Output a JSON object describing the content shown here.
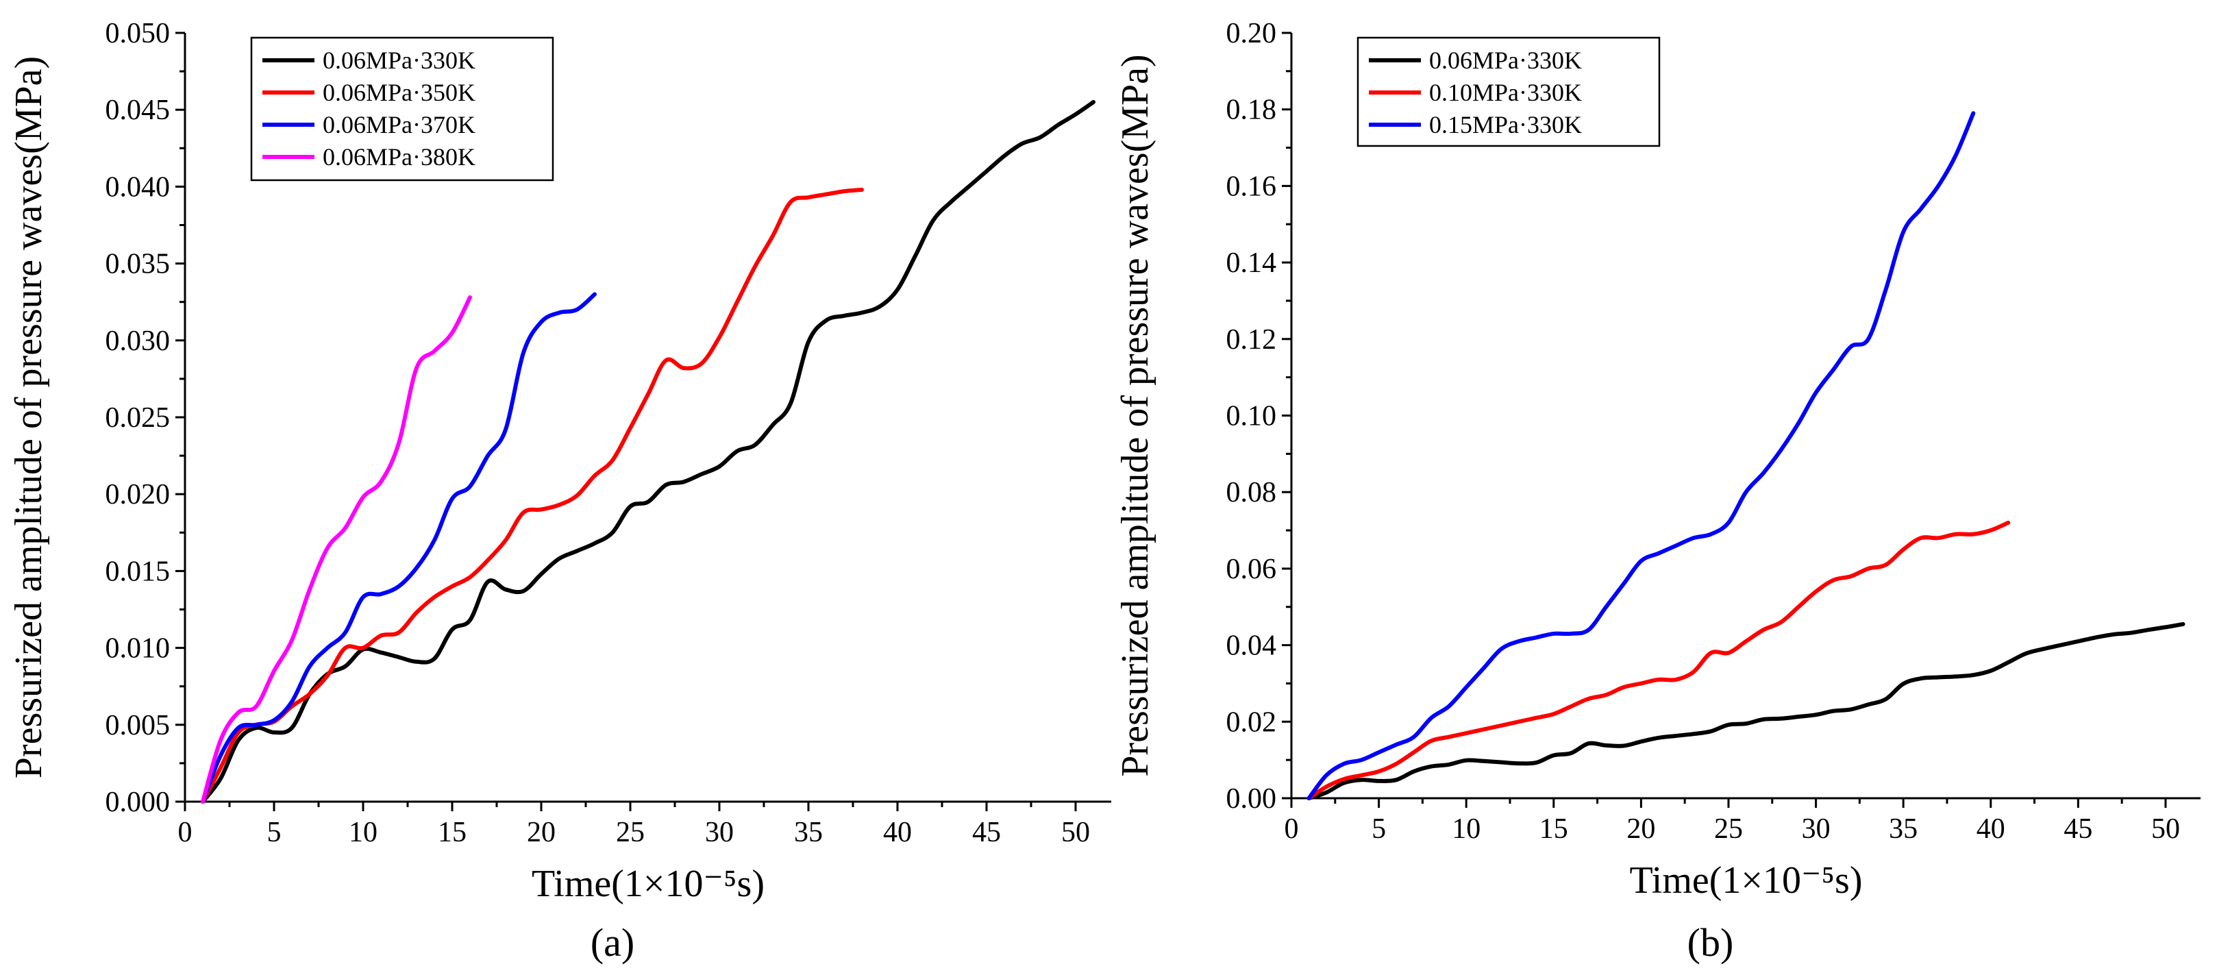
{
  "chart_data": [
    {
      "type": "line",
      "panel_label": "(a)",
      "xlabel": "Time(1×10⁻⁵s)",
      "ylabel": "Pressurized amplitude of pressure waves(MPa)",
      "xlim": [
        0,
        52
      ],
      "ylim": [
        0,
        0.05
      ],
      "xticks": [
        0,
        5,
        10,
        15,
        20,
        25,
        30,
        35,
        40,
        45,
        50
      ],
      "yticks": [
        0.0,
        0.005,
        0.01,
        0.015,
        0.02,
        0.025,
        0.03,
        0.035,
        0.04,
        0.045,
        0.05
      ],
      "ytick_labels": [
        "0.000",
        "0.005",
        "0.010",
        "0.015",
        "0.020",
        "0.025",
        "0.030",
        "0.035",
        "0.040",
        "0.045",
        "0.050"
      ],
      "xtick_labels": [
        "0",
        "5",
        "10",
        "15",
        "20",
        "25",
        "30",
        "35",
        "40",
        "45",
        "50"
      ],
      "legend_position": "top-left",
      "series": [
        {
          "name": "0.06MPa·330K",
          "color": "#000000",
          "x": [
            1,
            2,
            3,
            4,
            5,
            6,
            7,
            8,
            9,
            10,
            11,
            12,
            13,
            14,
            15,
            16,
            17,
            18,
            19,
            20,
            21,
            22,
            23,
            24,
            25,
            26,
            27,
            28,
            29,
            30,
            31,
            32,
            33,
            34,
            35,
            36,
            37,
            38,
            39,
            40,
            41,
            42,
            43,
            44,
            45,
            46,
            47,
            48,
            49,
            50,
            51
          ],
          "y": [
            0,
            0.0015,
            0.004,
            0.0048,
            0.0045,
            0.0048,
            0.007,
            0.0083,
            0.0088,
            0.0099,
            0.0097,
            0.0094,
            0.0091,
            0.0093,
            0.0112,
            0.0118,
            0.0143,
            0.0138,
            0.0137,
            0.0148,
            0.0158,
            0.0163,
            0.0168,
            0.0175,
            0.0192,
            0.0195,
            0.0206,
            0.0208,
            0.0213,
            0.0218,
            0.0228,
            0.0232,
            0.0245,
            0.0259,
            0.0299,
            0.0313,
            0.0316,
            0.0318,
            0.0322,
            0.0333,
            0.0355,
            0.0378,
            0.039,
            0.04,
            0.041,
            0.042,
            0.0428,
            0.0432,
            0.044,
            0.0447,
            0.0455
          ]
        },
        {
          "name": "0.06MPa·350K",
          "color": "#ff0000",
          "x": [
            1,
            2,
            3,
            4,
            5,
            6,
            7,
            8,
            9,
            10,
            11,
            12,
            13,
            14,
            15,
            16,
            17,
            18,
            19,
            20,
            21,
            22,
            23,
            24,
            25,
            26,
            27,
            28,
            29,
            30,
            31,
            32,
            33,
            34,
            35,
            36,
            37,
            38
          ],
          "y": [
            0,
            0.0022,
            0.0045,
            0.005,
            0.0052,
            0.0062,
            0.007,
            0.0082,
            0.01,
            0.01,
            0.0108,
            0.011,
            0.0123,
            0.0133,
            0.014,
            0.0146,
            0.0157,
            0.017,
            0.0188,
            0.019,
            0.0193,
            0.0199,
            0.0212,
            0.0222,
            0.0243,
            0.0265,
            0.0287,
            0.0282,
            0.0285,
            0.0302,
            0.0325,
            0.0348,
            0.0368,
            0.039,
            0.0393,
            0.0395,
            0.0397,
            0.0398
          ]
        },
        {
          "name": "0.06MPa·370K",
          "color": "#0000ff",
          "x": [
            1,
            2,
            3,
            4,
            5,
            6,
            7,
            8,
            9,
            10,
            11,
            12,
            13,
            14,
            15,
            16,
            17,
            18,
            19,
            20,
            21,
            22,
            23
          ],
          "y": [
            0,
            0.003,
            0.0048,
            0.005,
            0.0053,
            0.0065,
            0.0088,
            0.01,
            0.011,
            0.0133,
            0.0135,
            0.014,
            0.0152,
            0.017,
            0.0197,
            0.0205,
            0.0225,
            0.0242,
            0.0292,
            0.0312,
            0.0318,
            0.032,
            0.033
          ]
        },
        {
          "name": "0.06MPa·380K",
          "color": "#ff00ff",
          "x": [
            1,
            2,
            3,
            4,
            5,
            6,
            7,
            8,
            9,
            10,
            11,
            12,
            13,
            14,
            15,
            16
          ],
          "y": [
            0,
            0.004,
            0.0058,
            0.0062,
            0.0085,
            0.0105,
            0.0138,
            0.0165,
            0.0178,
            0.0198,
            0.0208,
            0.0233,
            0.0282,
            0.0293,
            0.0305,
            0.0328
          ]
        }
      ]
    },
    {
      "type": "line",
      "panel_label": "(b)",
      "xlabel": "Time(1×10⁻⁵s)",
      "ylabel": "Pressurized amplitude of pressure waves(MPa)",
      "xlim": [
        0,
        52
      ],
      "ylim": [
        0,
        0.2
      ],
      "xticks": [
        0,
        5,
        10,
        15,
        20,
        25,
        30,
        35,
        40,
        45,
        50
      ],
      "yticks": [
        0.0,
        0.02,
        0.04,
        0.06,
        0.08,
        0.1,
        0.12,
        0.14,
        0.16,
        0.18,
        0.2
      ],
      "ytick_labels": [
        "0.00",
        "0.02",
        "0.04",
        "0.06",
        "0.08",
        "0.10",
        "0.12",
        "0.14",
        "0.16",
        "0.18",
        "0.20"
      ],
      "xtick_labels": [
        "0",
        "5",
        "10",
        "15",
        "20",
        "25",
        "30",
        "35",
        "40",
        "45",
        "50"
      ],
      "legend_position": "top-left",
      "series": [
        {
          "name": "0.06MPa·330K",
          "color": "#000000",
          "x": [
            1,
            2,
            3,
            4,
            5,
            6,
            7,
            8,
            9,
            10,
            11,
            12,
            13,
            14,
            15,
            16,
            17,
            18,
            19,
            20,
            21,
            22,
            23,
            24,
            25,
            26,
            27,
            28,
            29,
            30,
            31,
            32,
            33,
            34,
            35,
            36,
            37,
            38,
            39,
            40,
            41,
            42,
            43,
            44,
            45,
            46,
            47,
            48,
            49,
            50,
            51
          ],
          "y": [
            0,
            0.0015,
            0.004,
            0.0048,
            0.0045,
            0.0048,
            0.007,
            0.0083,
            0.0088,
            0.0099,
            0.0097,
            0.0094,
            0.0091,
            0.0093,
            0.0112,
            0.0118,
            0.0143,
            0.0138,
            0.0137,
            0.0148,
            0.0158,
            0.0163,
            0.0168,
            0.0175,
            0.0192,
            0.0195,
            0.0206,
            0.0208,
            0.0213,
            0.0218,
            0.0228,
            0.0232,
            0.0245,
            0.0259,
            0.0299,
            0.0313,
            0.0316,
            0.0318,
            0.0322,
            0.0333,
            0.0355,
            0.0378,
            0.039,
            0.04,
            0.041,
            0.042,
            0.0428,
            0.0432,
            0.044,
            0.0447,
            0.0455
          ]
        },
        {
          "name": "0.10MPa·330K",
          "color": "#ff0000",
          "x": [
            1,
            2,
            3,
            4,
            5,
            6,
            7,
            8,
            9,
            10,
            11,
            12,
            13,
            14,
            15,
            16,
            17,
            18,
            19,
            20,
            21,
            22,
            23,
            24,
            25,
            26,
            27,
            28,
            29,
            30,
            31,
            32,
            33,
            34,
            35,
            36,
            37,
            38,
            39,
            40,
            41
          ],
          "y": [
            0,
            0.003,
            0.005,
            0.006,
            0.007,
            0.009,
            0.012,
            0.015,
            0.016,
            0.017,
            0.018,
            0.019,
            0.02,
            0.021,
            0.022,
            0.024,
            0.026,
            0.027,
            0.029,
            0.03,
            0.031,
            0.031,
            0.033,
            0.038,
            0.038,
            0.041,
            0.044,
            0.046,
            0.05,
            0.054,
            0.057,
            0.058,
            0.06,
            0.061,
            0.065,
            0.068,
            0.068,
            0.069,
            0.069,
            0.07,
            0.072
          ]
        },
        {
          "name": "0.15MPa·330K",
          "color": "#0000ff",
          "x": [
            1,
            2,
            3,
            4,
            5,
            6,
            7,
            8,
            9,
            10,
            11,
            12,
            13,
            14,
            15,
            16,
            17,
            18,
            19,
            20,
            21,
            22,
            23,
            24,
            25,
            26,
            27,
            28,
            29,
            30,
            31,
            32,
            33,
            34,
            35,
            36,
            37,
            38,
            39
          ],
          "y": [
            0,
            0.006,
            0.009,
            0.01,
            0.012,
            0.014,
            0.016,
            0.021,
            0.024,
            0.029,
            0.034,
            0.039,
            0.041,
            0.042,
            0.043,
            0.043,
            0.044,
            0.05,
            0.056,
            0.062,
            0.064,
            0.066,
            0.068,
            0.069,
            0.072,
            0.08,
            0.085,
            0.091,
            0.098,
            0.106,
            0.112,
            0.118,
            0.12,
            0.133,
            0.148,
            0.154,
            0.16,
            0.168,
            0.179
          ]
        }
      ]
    }
  ]
}
